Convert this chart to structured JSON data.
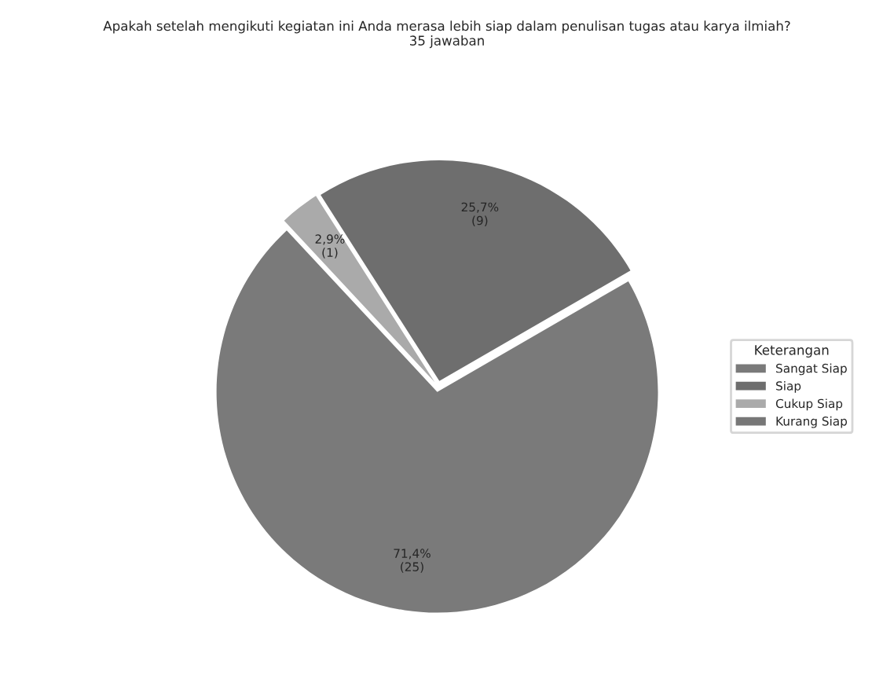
{
  "chart_data": {
    "type": "pie",
    "title": "Apakah setelah mengikuti kegiatan ini Anda merasa lebih siap dalam penulisan tugas atau karya ilmiah?\n35 jawaban",
    "categories": [
      "Sangat Siap",
      "Siap",
      "Cukup Siap",
      "Kurang Siap"
    ],
    "values": [
      71.4,
      25.7,
      2.9,
      0
    ],
    "value_labels": [
      "71,4%\n(25)",
      "25,7%\n(9)",
      "2,9%\n(1)",
      null
    ],
    "colors": [
      "#7a7a7a",
      "#6e6e6e",
      "#aaaaaa",
      "#777777"
    ],
    "legend_title": "Keterangan",
    "legend": "right"
  }
}
